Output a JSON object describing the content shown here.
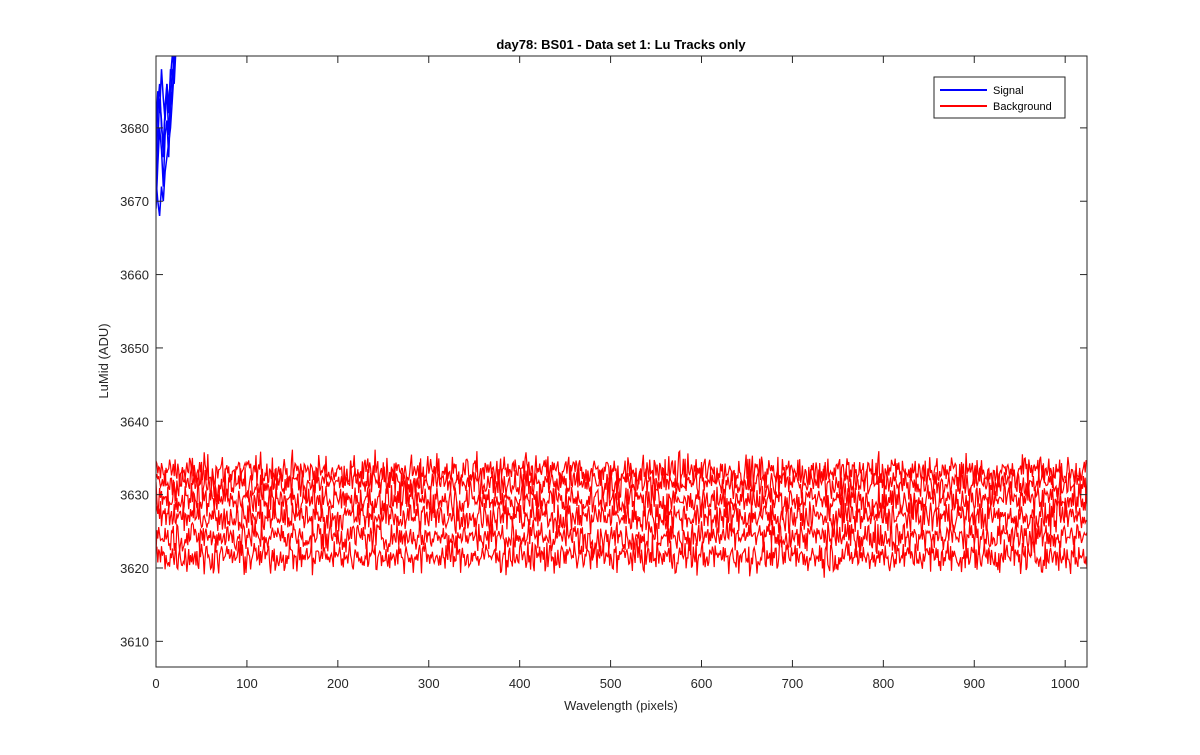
{
  "chart_data": {
    "type": "line",
    "title": "day78: BS01 - Data set 1: Lu Tracks only",
    "xlabel": "Wavelength (pixels)",
    "ylabel": "LuMid (ADU)",
    "xlim": [
      0,
      1024
    ],
    "ylim": [
      3606.5,
      3689.8
    ],
    "x_ticks": [
      0,
      100,
      200,
      300,
      400,
      500,
      600,
      700,
      800,
      900,
      1000
    ],
    "y_ticks": [
      3610,
      3620,
      3630,
      3640,
      3650,
      3660,
      3670,
      3680
    ],
    "grid": false,
    "legend": {
      "position": "top-right",
      "entries": [
        "Signal",
        "Background"
      ]
    },
    "series": [
      {
        "name": "Signal",
        "color": "#0000ff",
        "traces": [
          {
            "x": [
              0,
              2,
              4,
              6,
              8,
              10,
              12,
              14,
              16,
              18,
              20,
              22
            ],
            "y": [
              3671,
              3678,
              3684,
              3681,
              3676,
              3683,
              3686,
              3682,
              3688,
              3687,
              3690,
              3692
            ]
          },
          {
            "x": [
              0,
              2,
              4,
              6,
              8,
              10,
              12,
              14,
              16,
              18,
              20,
              22
            ],
            "y": [
              3676,
              3683,
              3686,
              3680,
              3678,
              3682,
              3685,
              3679,
              3684,
              3688,
              3686,
              3691
            ]
          },
          {
            "x": [
              0,
              2,
              4,
              6,
              8,
              10,
              12,
              14,
              16,
              18,
              20,
              22
            ],
            "y": [
              3669,
              3675,
              3680,
              3677,
              3672,
              3679,
              3681,
              3676,
              3683,
              3685,
              3689,
              3693
            ]
          },
          {
            "x": [
              0,
              2,
              4,
              6,
              8,
              10,
              12,
              14,
              16,
              18,
              20,
              22
            ],
            "y": [
              3680,
              3685,
              3682,
              3688,
              3684,
              3681,
              3686,
              3683,
              3687,
              3690,
              3688,
              3692
            ]
          },
          {
            "x": [
              0,
              2,
              4,
              6,
              8,
              10,
              12,
              14,
              16,
              18,
              20,
              22
            ],
            "y": [
              3673,
              3670,
              3668,
              3672,
              3670,
              3674,
              3676,
              3678,
              3680,
              3684,
              3688,
              3691
            ]
          }
        ]
      },
      {
        "name": "Background",
        "color": "#ff0000",
        "x_range": [
          0,
          1024
        ],
        "x_step": 1,
        "traces": [
          {
            "mean": 3633.2,
            "noise_sd": 1.5
          },
          {
            "mean": 3631.6,
            "noise_sd": 1.5
          },
          {
            "mean": 3629.3,
            "noise_sd": 1.5
          },
          {
            "mean": 3627.0,
            "noise_sd": 1.5
          },
          {
            "mean": 3624.3,
            "noise_sd": 1.5
          },
          {
            "mean": 3621.6,
            "noise_sd": 1.5
          }
        ]
      }
    ]
  }
}
